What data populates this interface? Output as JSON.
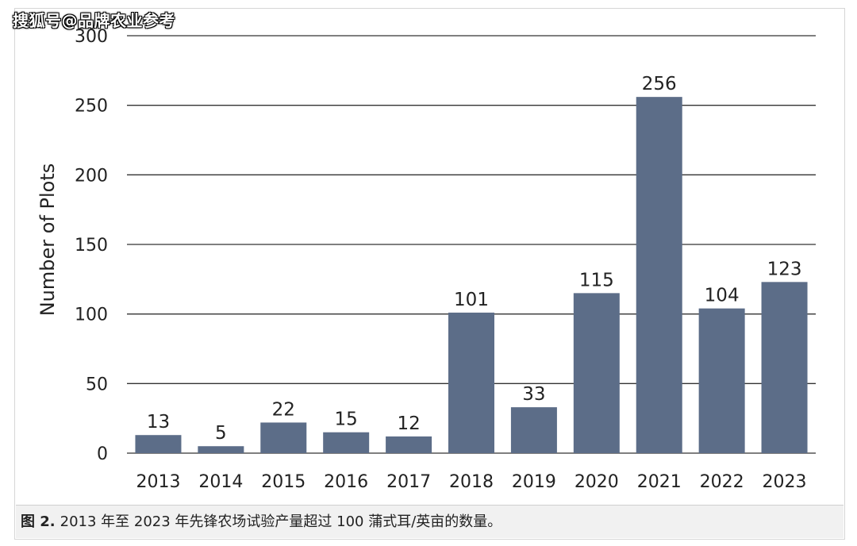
{
  "watermark": "搜狐号@品牌农业参考",
  "caption": {
    "label": "图 2.",
    "text": "2013 年至 2023 年先锋农场试验产量超过 100 蒲式耳/英亩的数量。"
  },
  "colors": {
    "bar": "#5c6d88",
    "grid": "#333333",
    "text": "#222222"
  },
  "chart_data": {
    "type": "bar",
    "categories": [
      "2013",
      "2014",
      "2015",
      "2016",
      "2017",
      "2018",
      "2019",
      "2020",
      "2021",
      "2022",
      "2023"
    ],
    "values": [
      13,
      5,
      22,
      15,
      12,
      101,
      33,
      115,
      256,
      104,
      123
    ],
    "data_labels": [
      "13",
      "5",
      "22",
      "15",
      "12",
      "101",
      "33",
      "115",
      "256",
      "104",
      "123"
    ],
    "ylabel": "Number of Plots",
    "xlabel": "",
    "ylim": [
      0,
      300
    ],
    "yticks": [
      0,
      50,
      100,
      150,
      200,
      250,
      300
    ],
    "ytick_labels": [
      "0",
      "50",
      "100",
      "150",
      "200",
      "250",
      "300"
    ],
    "grid": true
  }
}
